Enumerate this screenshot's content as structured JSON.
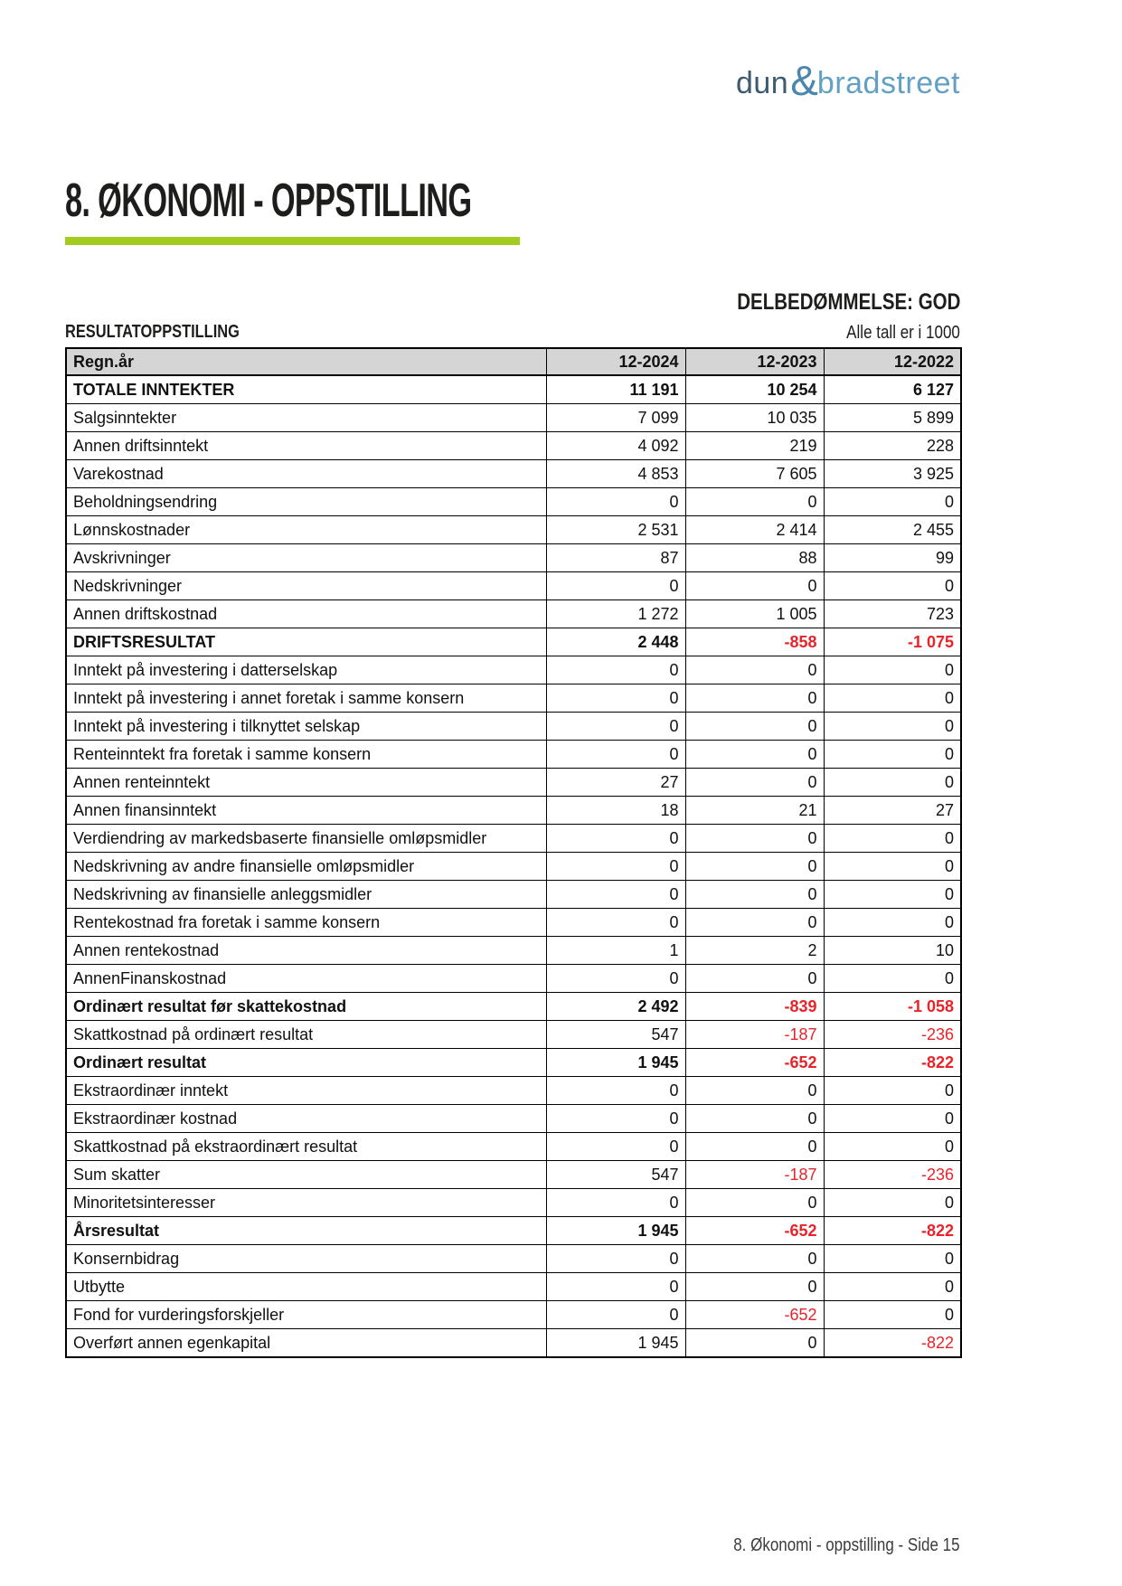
{
  "logo": {
    "dun": "dun",
    "ampersand": "&",
    "bradstreet": "bradstreet"
  },
  "header": {
    "title": "8. ØKONOMI - OPPSTILLING",
    "assessment": "DELBEDØMMELSE: GOD",
    "section_title": "RESULTATOPPSTILLING",
    "units_note": "Alle tall er i 1000"
  },
  "colors": {
    "accent_green": "#a4cc20",
    "negative_red": "#e62429",
    "table_header_bg": "#d5d5d5",
    "logo_dun_blue": "#3d5a70",
    "logo_ampersand_blue": "#4b87ad",
    "logo_bradstreet_blue": "#62a0c4"
  },
  "table": {
    "header": [
      "Regn.år",
      "12-2024",
      "12-2023",
      "12-2022"
    ],
    "rows": [
      {
        "label": "TOTALE INNTEKTER",
        "bold": true,
        "values": [
          "11 191",
          "10 254",
          "6 127"
        ]
      },
      {
        "label": "Salgsinntekter",
        "bold": false,
        "values": [
          "7 099",
          "10 035",
          "5 899"
        ]
      },
      {
        "label": "Annen driftsinntekt",
        "bold": false,
        "values": [
          "4 092",
          "219",
          "228"
        ]
      },
      {
        "label": "Varekostnad",
        "bold": false,
        "values": [
          "4 853",
          "7 605",
          "3 925"
        ]
      },
      {
        "label": "Beholdningsendring",
        "bold": false,
        "values": [
          "0",
          "0",
          "0"
        ]
      },
      {
        "label": "Lønnskostnader",
        "bold": false,
        "values": [
          "2 531",
          "2 414",
          "2 455"
        ]
      },
      {
        "label": "Avskrivninger",
        "bold": false,
        "values": [
          "87",
          "88",
          "99"
        ]
      },
      {
        "label": "Nedskrivninger",
        "bold": false,
        "values": [
          "0",
          "0",
          "0"
        ]
      },
      {
        "label": "Annen driftskostnad",
        "bold": false,
        "values": [
          "1 272",
          "1 005",
          "723"
        ]
      },
      {
        "label": "DRIFTSRESULTAT",
        "bold": true,
        "values": [
          "2 448",
          "-858",
          "-1 075"
        ]
      },
      {
        "label": "Inntekt på investering i datterselskap",
        "bold": false,
        "values": [
          "0",
          "0",
          "0"
        ]
      },
      {
        "label": "Inntekt på investering i annet foretak i samme konsern",
        "bold": false,
        "values": [
          "0",
          "0",
          "0"
        ]
      },
      {
        "label": "Inntekt på investering i tilknyttet selskap",
        "bold": false,
        "values": [
          "0",
          "0",
          "0"
        ]
      },
      {
        "label": "Renteinntekt fra foretak i samme konsern",
        "bold": false,
        "values": [
          "0",
          "0",
          "0"
        ]
      },
      {
        "label": "Annen renteinntekt",
        "bold": false,
        "values": [
          "27",
          "0",
          "0"
        ]
      },
      {
        "label": "Annen finansinntekt",
        "bold": false,
        "values": [
          "18",
          "21",
          "27"
        ]
      },
      {
        "label": "Verdiendring av markedsbaserte finansielle omløpsmidler",
        "bold": false,
        "values": [
          "0",
          "0",
          "0"
        ]
      },
      {
        "label": "Nedskrivning av andre finansielle omløpsmidler",
        "bold": false,
        "values": [
          "0",
          "0",
          "0"
        ]
      },
      {
        "label": "Nedskrivning av finansielle anleggsmidler",
        "bold": false,
        "values": [
          "0",
          "0",
          "0"
        ]
      },
      {
        "label": "Rentekostnad fra foretak i samme konsern",
        "bold": false,
        "values": [
          "0",
          "0",
          "0"
        ]
      },
      {
        "label": "Annen rentekostnad",
        "bold": false,
        "values": [
          "1",
          "2",
          "10"
        ]
      },
      {
        "label": "AnnenFinanskostnad",
        "bold": false,
        "values": [
          "0",
          "0",
          "0"
        ]
      },
      {
        "label": "Ordinært resultat før skattekostnad",
        "bold": true,
        "values": [
          "2 492",
          "-839",
          "-1 058"
        ]
      },
      {
        "label": "Skattkostnad på ordinært resultat",
        "bold": false,
        "values": [
          "547",
          "-187",
          "-236"
        ]
      },
      {
        "label": "Ordinært resultat",
        "bold": true,
        "values": [
          "1 945",
          "-652",
          "-822"
        ]
      },
      {
        "label": "Ekstraordinær inntekt",
        "bold": false,
        "values": [
          "0",
          "0",
          "0"
        ]
      },
      {
        "label": "Ekstraordinær kostnad",
        "bold": false,
        "values": [
          "0",
          "0",
          "0"
        ]
      },
      {
        "label": "Skattkostnad på ekstraordinært resultat",
        "bold": false,
        "values": [
          "0",
          "0",
          "0"
        ]
      },
      {
        "label": "Sum skatter",
        "bold": false,
        "values": [
          "547",
          "-187",
          "-236"
        ]
      },
      {
        "label": "Minoritetsinteresser",
        "bold": false,
        "values": [
          "0",
          "0",
          "0"
        ]
      },
      {
        "label": "Årsresultat",
        "bold": true,
        "values": [
          "1 945",
          "-652",
          "-822"
        ]
      },
      {
        "label": "Konsernbidrag",
        "bold": false,
        "values": [
          "0",
          "0",
          "0"
        ]
      },
      {
        "label": "Utbytte",
        "bold": false,
        "values": [
          "0",
          "0",
          "0"
        ]
      },
      {
        "label": "Fond for vurderingsforskjeller",
        "bold": false,
        "values": [
          "0",
          "-652",
          "0"
        ]
      },
      {
        "label": "Overført annen egenkapital",
        "bold": false,
        "values": [
          "1 945",
          "0",
          "-822"
        ]
      }
    ]
  },
  "footer": {
    "text": "8. Økonomi - oppstilling - Side 15"
  }
}
